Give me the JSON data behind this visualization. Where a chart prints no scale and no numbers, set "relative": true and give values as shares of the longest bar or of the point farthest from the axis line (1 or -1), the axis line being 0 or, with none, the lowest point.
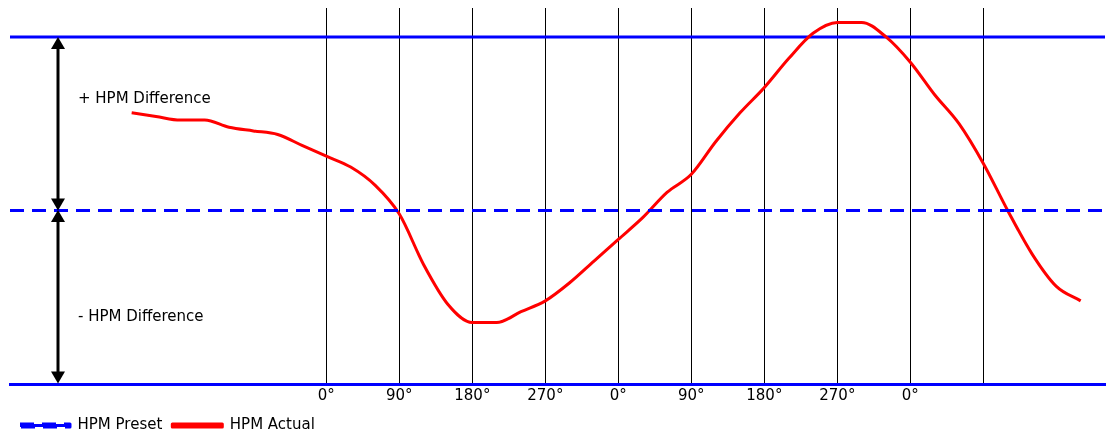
{
  "chart_data": {
    "type": "line",
    "relative": true,
    "annotations": [
      "+ HPM Difference",
      "- HPM Difference"
    ],
    "categories": [
      null,
      null,
      null,
      null,
      null,
      null,
      null,
      null,
      null,
      null,
      null,
      null,
      null,
      "0°",
      null,
      null,
      "90°",
      null,
      null,
      "180°",
      null,
      null,
      "270°",
      null,
      null,
      "0°",
      null,
      null,
      "90°",
      null,
      null,
      "180°",
      null,
      null,
      "270°",
      null,
      null,
      "0°",
      null,
      null,
      null,
      null,
      null,
      null,
      null,
      null
    ],
    "grid": "x",
    "legend": "bottom",
    "marker": "none",
    "ref_lines": [
      {
        "axis": "y",
        "value": 0.96,
        "label": null,
        "color": "#0000ff"
      }
    ],
    "series": [
      {
        "name": "HPM Preset",
        "color": "#0000ff",
        "line_style": "dashed",
        "values": [
          0.48,
          0.48,
          0.48,
          0.48,
          0.48,
          0.48,
          0.48,
          0.48,
          0.48,
          0.48,
          0.48,
          0.48,
          0.48,
          0.48,
          0.48,
          0.48,
          0.48,
          0.48,
          0.48,
          0.48,
          0.48,
          0.48,
          0.48,
          0.48,
          0.48,
          0.48,
          0.48,
          0.48,
          0.48,
          0.48,
          0.48,
          0.48,
          0.48,
          0.48,
          0.48,
          0.48,
          0.48,
          0.48,
          0.48,
          0.48,
          0.48,
          0.48,
          0.48,
          0.48,
          0.48,
          0.48
        ]
      },
      {
        "name": "HPM Actual",
        "color": "#ff0000",
        "line_style": "solid",
        "values": [
          null,
          null,
          null,
          null,
          null,
          0.75,
          0.74,
          0.73,
          0.73,
          0.71,
          0.7,
          0.69,
          0.66,
          0.63,
          0.6,
          0.55,
          0.47,
          0.33,
          0.22,
          0.17,
          0.17,
          0.2,
          0.23,
          0.28,
          0.34,
          0.4,
          0.46,
          0.53,
          0.58,
          0.67,
          0.75,
          0.82,
          0.9,
          0.97,
          1,
          1,
          0.96,
          0.89,
          0.8,
          0.72,
          0.61,
          0.48,
          0.36,
          0.27,
          0.23,
          null
        ]
      }
    ]
  }
}
